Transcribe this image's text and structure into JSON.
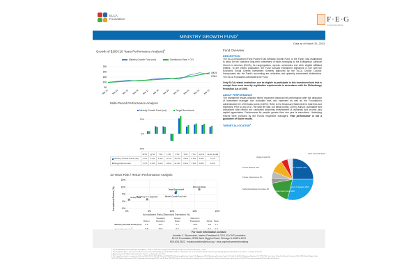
{
  "header": {
    "org_name_line1": "ELCA",
    "org_name_line2": "Foundation",
    "partner_logo": "F·E·G",
    "partner_sub": "investment advisors",
    "title": "MINISTRY GROWTH FUND",
    "title_sup": "1",
    "date": "Data as of March 31, 2023"
  },
  "growth": {
    "title": "Growth of $100 (10 Years Performance Analysis)",
    "title_sup": "2",
    "legend": [
      "Ministry Growth Fund (net)",
      "Distribution Rate + CPI"
    ],
    "end_labels": [
      "190.9",
      "178.0"
    ],
    "chart_data": {
      "type": "line",
      "x": [
        "Mar 13",
        "Mar 14",
        "Mar 15",
        "Mar 16",
        "Mar 17",
        "Mar 18",
        "Mar 19",
        "Mar 20",
        "Mar 21",
        "Mar 22",
        "Mar 23"
      ],
      "yticks": [
        "250",
        "200",
        "150",
        "100",
        "50"
      ],
      "ylim": [
        50,
        250
      ],
      "series": [
        {
          "name": "Ministry Growth Fund (net)",
          "values": [
            100,
            112,
            120,
            112,
            125,
            140,
            140,
            130,
            170,
            192,
            178
          ]
        },
        {
          "name": "Distribution Rate + CPI",
          "values": [
            100,
            106,
            112,
            117,
            122,
            128,
            134,
            142,
            154,
            172,
            190.9
          ]
        }
      ]
    }
  },
  "multi": {
    "title": "Multi-Period Performance Analysis",
    "legend": [
      "Ministry Growth Fund (net)",
      "Target Benchmark"
    ],
    "chart_data": {
      "type": "bar",
      "categories": [
        "MTD",
        "QTD",
        "YTD",
        "1YR",
        "3YR",
        "5YR",
        "7YR",
        "10YR",
        "Since 11/99"
      ],
      "yticks": [
        "10%",
        "0%",
        "-10%"
      ],
      "ylim": [
        -10,
        12
      ],
      "series": [
        {
          "name": "Ministry Growth Fund (net)",
          "values": [
            1.7,
            5.1,
            5.1,
            -4.7,
            10.4,
            4.9,
            6.3,
            5.9,
            4.7
          ]
        },
        {
          "name": "Target Benchmark",
          "values": [
            1.7,
            4.6,
            4.6,
            -4.8,
            11.9,
            5.9,
            7.0,
            6.8,
            5.5
          ]
        }
      ]
    },
    "rows": [
      {
        "label": "Ministry Growth Fund (net)",
        "values": [
          "1.7%",
          "5.1%",
          "5.1%",
          "-4.7%",
          "10.4%",
          "4.9%",
          "6.3%",
          "5.9%",
          "4.7%"
        ]
      },
      {
        "label": "Target Benchmark",
        "values": [
          "1.7%",
          "4.6%",
          "4.6%",
          "-4.8%",
          "11.9%",
          "5.9%",
          "7.0%",
          "6.8%",
          "5.5%"
        ]
      }
    ]
  },
  "risk": {
    "title": "10 Years Risk / Return Performance Analysis",
    "ylabel": "Annualized Return (%)",
    "xlabel": "Annualized Risk (Standard Deviation %)",
    "yticks": [
      "15%",
      "10%",
      "5%",
      "0%",
      "-5%"
    ],
    "xticks": [
      "0%",
      "5%",
      "10%",
      "15%",
      "20%"
    ],
    "points": [
      {
        "label": "Target Benchmark",
        "sup": "4",
        "x": 10.9,
        "y": 6.8
      },
      {
        "label": "Ministry Growth Fund (net)",
        "x": 10.8,
        "y": 5.9
      },
      {
        "label": "MSCI AC World",
        "x": 16,
        "y": 8.4
      },
      {
        "label": "Bloomberg U.S. Aggregate",
        "x": 4.5,
        "y": 1.4
      },
      {
        "label": "90-Day T-Bill",
        "x": 0.5,
        "y": 1.2
      }
    ],
    "columns": [
      "Return",
      "Standard Deviation",
      "Sharpe Ratio",
      "Maximum Drawdown",
      "Alpha",
      "Beta"
    ],
    "rows": [
      {
        "label": "Ministry Growth Fund (net)",
        "values": [
          "5.9",
          "10.8",
          "0.5",
          "-18.9",
          "-0.8",
          "1.0"
        ]
      },
      {
        "label": "Target Benchmark",
        "sup": "4",
        "values": [
          "6.8",
          "10.9",
          "0.5",
          "-17.3",
          "0.0",
          "1.0"
        ]
      }
    ]
  },
  "overview": {
    "title": "Fund Overview",
    "desc_head": "DESCRIPTION",
    "desc": "The ELCA Endowment Fund Pooled Trust (Ministry Growth Fund, or the Fund), was established to allow for the collective long-term investment of funds belonging to the Evangelical Lutheran Church in America (ELCA), its congregations, synods, seminaries and other eligible affiliated entities. To the extent practicable, the Fund pursues investment objectives in line with the Economic Social Criteria Investment Screens approved by the ELCA Church Council. Incorporated into the Fund's accounting are unitization and quarterly endowment distributions. The ELCA Foundation administers the Fund.",
    "eligibility": "Only ELCA-related institutions can be eligible to participate in this investment fund that is exempt from most security registration requirements in accordance with the Philanthropy Protection Act of 1995.",
    "perf_head": "ABOUT PERFORMANCE",
    "perf": "The investment results depicted herein represent historical net performance after the deduction of investment manager and custodian fees and expenses as well as the Foundation's administrative fee of 60 basis points (0.60%). Refer to the Disclosure Statement for total fees and expenses. Prior to July 2017, the total fee was 100 basis points (1.00%). Annual, cumulative and annualized total returns are calculated assuming reinvestment of dividends and income plus capital appreciation. Performance for periods greater than one year is annualized. Underlying returns were provided by the Fund's respective managers.",
    "perf_bold": "Past performance is not a guarantee of future results.",
    "alloc_head": "TARGET ALLOCATION",
    "alloc_sup": "3"
  },
  "allocation": {
    "chart_data": {
      "type": "pie",
      "slices": [
        {
          "label": "U.S. Equities 25%",
          "value": 25,
          "color": "#0b5fa5"
        },
        {
          "label": "Non-U.S. Equities 29%",
          "value": 29,
          "color": "#1aa3e8"
        },
        {
          "label": "Global Fixed Income 18%",
          "value": 18,
          "color": "#3a9a3a"
        },
        {
          "label": "Global Real Estate Securities 4%",
          "value": 4,
          "color": "#999999"
        },
        {
          "label": "Private Infrastructure 5%",
          "value": 5,
          "color": "#bbbbbb"
        },
        {
          "label": "Private Markets 10%",
          "value": 10,
          "color": "#f0b020"
        },
        {
          "label": "Hedge Funds 5%",
          "value": 5,
          "color": "#e02020"
        },
        {
          "label": "Cash and Cash Equiv. - Investments 4%",
          "value": 4,
          "color": "#dde6f0"
        }
      ]
    }
  },
  "contact": {
    "head": "For more information contact:",
    "line1": "Annette C. Shoemaker, Interim President & CEO, ELCA Foundation",
    "line2": "ELCA Foundation, 8765 West Higgins Road, Chicago IL 60631-4101",
    "line3": "800-638-3522 · elcafoundation@elca.org · elca.org/endowmentinvesting"
  },
  "footnotes": [
    "1 The ELCA Endowment Fund Pooled Trust (EFPT) - Fund II's name was changed to the Ministry Growth Fund, effective November 1, 2021.",
    "2 The Distribution Rate + CPI consists of the Consumer Price Index (CPI) plus the ELCA Foundation's distribution rate. The Foundation Board of Trustees periodically adjusts the distribution rate which is currently set at 4.0%.",
    "3 Approved by the ELCA Foundation Board of Trustees on September 16, 2022.",
    "4 The Target Benchmark is comprised of: Russell 3000 (25%), MSCI ACWI ex-US IMI (29%), Bloomberg Barclays Capital U.S. Aggregate (8%), Bloomberg Barclays Capital U.S. High Yield (4%), Bloomberg Barclays U.S. TIPS (6%), Dow Jones Select Real Estate Securities (4%), HFRI Global Hedge Funds (5%), S&P Global Infrastructure (5%), Cambridge Private Equity (10%), and 90-Day T-Bill (4%) indices. The benchmark is rebalanced on a monthly basis. Historical benchmark returns prior to July 2017 have been provided by Portico Benefit Services."
  ]
}
